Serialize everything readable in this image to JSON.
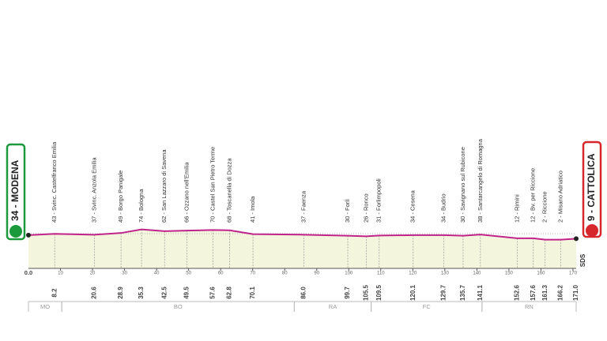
{
  "chart_data": {
    "type": "profile",
    "start": {
      "label": "34 - MODENA",
      "km": {
        "value": 0,
        "label": "0.0"
      },
      "altitude": 34
    },
    "end": {
      "label": "9 - CATTOLICA",
      "km": {
        "value": 171,
        "label": "171.0"
      },
      "altitude": 9
    },
    "waypoints": [
      {
        "label": "43 - Svinc. Castelfranco Emilia",
        "km": 8.2,
        "altitude": 43
      },
      {
        "label": "37 - Svinc. Anzola Emilia",
        "km": 20.6,
        "altitude": 37
      },
      {
        "label": "49 - Borgo Panigale",
        "km": 28.9,
        "altitude": 49
      },
      {
        "label": "74 - Bologna",
        "km": 35.3,
        "altitude": 74
      },
      {
        "label": "62 - San Lazzaro di Savena",
        "km": 42.5,
        "altitude": 62
      },
      {
        "label": "66 - Ozzano nell'Emilia",
        "km": 49.5,
        "altitude": 66
      },
      {
        "label": "70 - Castel San Pietro Terme",
        "km": 57.6,
        "altitude": 70
      },
      {
        "label": "68 - Toscanella di Dozza",
        "km": 62.8,
        "altitude": 68
      },
      {
        "label": "41 - Imola",
        "km": 70.1,
        "altitude": 41
      },
      {
        "label": "37 - Faenza",
        "km": {
          "value": 86,
          "label": "86.0"
        },
        "altitude": 37
      },
      {
        "label": "30 - Forlì",
        "km": 99.7,
        "altitude": 30
      },
      {
        "label": "26 - Ronco",
        "km": 105.5,
        "altitude": 26
      },
      {
        "label": "31 - Forlimpopoli",
        "km": 109.5,
        "altitude": 31
      },
      {
        "label": "34 - Cesena",
        "km": 120.1,
        "altitude": 34
      },
      {
        "label": "34 - Budrio",
        "km": 129.7,
        "altitude": 34
      },
      {
        "label": "30 - Savignano sul Rubicone",
        "km": 135.7,
        "altitude": 30
      },
      {
        "label": "38 - Santarcangelo di Romagna",
        "km": 141.1,
        "altitude": 38
      },
      {
        "label": "12 - Rimini",
        "km": 152.6,
        "altitude": 12
      },
      {
        "label": "12 - Bv. per Riccione",
        "km": 157.6,
        "altitude": 12
      },
      {
        "label": "2 - Riccione",
        "km": 161.3,
        "altitude": 2
      },
      {
        "label": "2 - Misano Adriatico",
        "km": 166.2,
        "altitude": 2
      }
    ],
    "xlim": [
      0,
      171
    ],
    "xticks": [
      10,
      20,
      30,
      40,
      50,
      60,
      70,
      80,
      90,
      100,
      110,
      120,
      130,
      140,
      150,
      160,
      170
    ],
    "ylim": [
      -200,
      300
    ],
    "regions": [
      {
        "name": "MO",
        "from": 0,
        "to": 10.4
      },
      {
        "name": "BO",
        "from": 10.4,
        "to": 83
      },
      {
        "name": "RA",
        "from": 83,
        "to": 107
      },
      {
        "name": "FC",
        "from": 107,
        "to": 141.6
      },
      {
        "name": "RN",
        "from": 141.6,
        "to": 171
      }
    ],
    "logo": "SDS",
    "line_color": "#c0248a",
    "fill_color": "#f3f5dc",
    "start_color": "#1a9a3a",
    "end_color": "#d6282c"
  }
}
